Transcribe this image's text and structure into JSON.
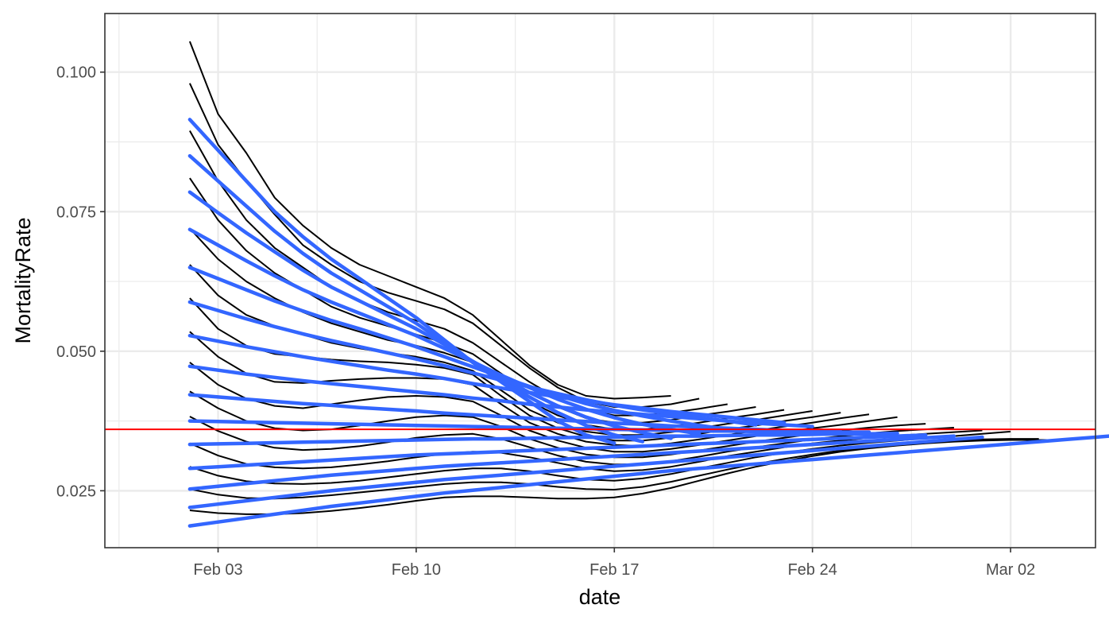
{
  "chart_data": {
    "type": "line",
    "title": "",
    "xlabel": "date",
    "ylabel": "MortalityRate",
    "x_ticks": [
      "2020-02-03",
      "2020-02-10",
      "2020-02-17",
      "2020-02-24",
      "2020-03-02"
    ],
    "x_tick_labels": [
      "Feb 03",
      "Feb 10",
      "Feb 17",
      "Feb 24",
      "Mar 02"
    ],
    "y_ticks": [
      0.025,
      0.05,
      0.075,
      0.1
    ],
    "y_tick_labels": [
      "0.025",
      "0.050",
      "0.075",
      "0.100"
    ],
    "xlim": [
      "2020-01-30",
      "2020-03-05"
    ],
    "ylim": [
      0.0148,
      0.1105
    ],
    "grid": true,
    "reference_line": {
      "y": 0.036,
      "color": "#ff0000"
    },
    "series_style": {
      "observed": {
        "color": "#000000"
      },
      "fitted": {
        "color": "#3366ff"
      }
    },
    "series": [
      {
        "type": "observed",
        "x_start": "2020-02-02",
        "y": [
          0.1055,
          0.0925,
          0.0855,
          0.0775,
          0.0725,
          0.0685,
          0.0655,
          0.0635,
          0.0615,
          0.0595,
          0.0565,
          0.052,
          0.0475,
          0.044,
          0.042,
          0.0415,
          0.0417,
          0.042
        ]
      },
      {
        "type": "observed",
        "x_start": "2020-02-02",
        "y": [
          0.098,
          0.087,
          0.0805,
          0.0745,
          0.069,
          0.0655,
          0.0625,
          0.0605,
          0.059,
          0.0575,
          0.055,
          0.051,
          0.047,
          0.0435,
          0.041,
          0.04,
          0.04,
          0.0405,
          0.0415
        ]
      },
      {
        "type": "observed",
        "x_start": "2020-02-02",
        "y": [
          0.0895,
          0.0805,
          0.0735,
          0.0685,
          0.065,
          0.0615,
          0.059,
          0.057,
          0.0555,
          0.054,
          0.0515,
          0.048,
          0.0445,
          0.0415,
          0.0395,
          0.0385,
          0.0385,
          0.039,
          0.0397,
          0.0405
        ]
      },
      {
        "type": "observed",
        "x_start": "2020-02-02",
        "y": [
          0.081,
          0.0735,
          0.068,
          0.064,
          0.061,
          0.058,
          0.056,
          0.0545,
          0.053,
          0.0515,
          0.0495,
          0.046,
          0.0425,
          0.04,
          0.038,
          0.0372,
          0.0372,
          0.0377,
          0.0385,
          0.0392,
          0.04
        ]
      },
      {
        "type": "observed",
        "x_start": "2020-02-02",
        "y": [
          0.072,
          0.0665,
          0.0625,
          0.0595,
          0.057,
          0.055,
          0.0535,
          0.052,
          0.051,
          0.0497,
          0.048,
          0.0445,
          0.041,
          0.0385,
          0.0368,
          0.036,
          0.036,
          0.0365,
          0.0372,
          0.038,
          0.0387,
          0.0395
        ]
      },
      {
        "type": "observed",
        "x_start": "2020-02-02",
        "y": [
          0.0655,
          0.06,
          0.0565,
          0.0545,
          0.053,
          0.0515,
          0.0505,
          0.0497,
          0.049,
          0.048,
          0.0465,
          0.043,
          0.0395,
          0.0372,
          0.0356,
          0.035,
          0.035,
          0.0355,
          0.0362,
          0.037,
          0.0377,
          0.0385,
          0.0393
        ]
      },
      {
        "type": "observed",
        "x_start": "2020-02-02",
        "y": [
          0.0595,
          0.054,
          0.051,
          0.0495,
          0.049,
          0.0485,
          0.0482,
          0.048,
          0.0476,
          0.047,
          0.0458,
          0.042,
          0.0385,
          0.0362,
          0.0347,
          0.034,
          0.034,
          0.0345,
          0.0352,
          0.036,
          0.0367,
          0.0375,
          0.0382,
          0.039
        ]
      },
      {
        "type": "observed",
        "x_start": "2020-02-02",
        "y": [
          0.0535,
          0.049,
          0.046,
          0.0445,
          0.0443,
          0.0447,
          0.045,
          0.0452,
          0.0452,
          0.045,
          0.044,
          0.0405,
          0.0372,
          0.0352,
          0.0338,
          0.0332,
          0.033,
          0.0335,
          0.0342,
          0.035,
          0.0358,
          0.0365,
          0.0372,
          0.038,
          0.0387
        ]
      },
      {
        "type": "observed",
        "x_start": "2020-02-02",
        "y": [
          0.048,
          0.044,
          0.0415,
          0.0402,
          0.0398,
          0.0405,
          0.0412,
          0.0418,
          0.042,
          0.0418,
          0.041,
          0.0385,
          0.0358,
          0.034,
          0.0327,
          0.032,
          0.032,
          0.0325,
          0.0332,
          0.034,
          0.0348,
          0.0355,
          0.0362,
          0.0368,
          0.0375,
          0.0382
        ]
      },
      {
        "type": "observed",
        "x_start": "2020-02-02",
        "y": [
          0.0428,
          0.0398,
          0.0375,
          0.0362,
          0.0358,
          0.036,
          0.0367,
          0.0375,
          0.0382,
          0.0385,
          0.0382,
          0.0365,
          0.0343,
          0.0327,
          0.0315,
          0.031,
          0.031,
          0.0315,
          0.0322,
          0.033,
          0.0338,
          0.0345,
          0.0352,
          0.0358,
          0.0363,
          0.0367,
          0.037
        ]
      },
      {
        "type": "observed",
        "x_start": "2020-02-02",
        "y": [
          0.0383,
          0.0357,
          0.0338,
          0.0327,
          0.0323,
          0.0325,
          0.033,
          0.0337,
          0.0345,
          0.035,
          0.0352,
          0.0343,
          0.0328,
          0.0313,
          0.0302,
          0.0297,
          0.0298,
          0.0303,
          0.0311,
          0.032,
          0.0328,
          0.0335,
          0.0342,
          0.0348,
          0.0353,
          0.0357,
          0.036,
          0.0363
        ]
      },
      {
        "type": "observed",
        "x_start": "2020-02-02",
        "y": [
          0.0335,
          0.0313,
          0.0298,
          0.0292,
          0.029,
          0.0292,
          0.0297,
          0.0303,
          0.031,
          0.0316,
          0.032,
          0.0318,
          0.031,
          0.03,
          0.029,
          0.0285,
          0.0287,
          0.0293,
          0.0302,
          0.0312,
          0.032,
          0.0328,
          0.0335,
          0.034,
          0.0345,
          0.0349,
          0.0352,
          0.0355,
          0.0358
        ]
      },
      {
        "type": "observed",
        "x_start": "2020-02-02",
        "y": [
          0.0293,
          0.0277,
          0.0267,
          0.0263,
          0.0262,
          0.0264,
          0.0268,
          0.0274,
          0.028,
          0.0286,
          0.029,
          0.029,
          0.0285,
          0.0277,
          0.027,
          0.0268,
          0.0272,
          0.028,
          0.029,
          0.03,
          0.031,
          0.0318,
          0.0325,
          0.0331,
          0.0336,
          0.034,
          0.0344,
          0.0348,
          0.0352,
          0.0356
        ]
      },
      {
        "type": "observed",
        "x_start": "2020-02-02",
        "y": [
          0.0253,
          0.0243,
          0.0237,
          0.0236,
          0.0238,
          0.0242,
          0.0247,
          0.0252,
          0.0257,
          0.0262,
          0.0265,
          0.0265,
          0.0262,
          0.0257,
          0.0253,
          0.0252,
          0.0257,
          0.0266,
          0.0277,
          0.0288,
          0.0298,
          0.0307,
          0.0315,
          0.0322,
          0.0328,
          0.0333,
          0.0337,
          0.034,
          0.0342,
          0.0343,
          0.0343
        ]
      },
      {
        "type": "observed",
        "x_start": "2020-02-02",
        "y": [
          0.0215,
          0.021,
          0.0208,
          0.0208,
          0.021,
          0.0214,
          0.0219,
          0.0225,
          0.0232,
          0.0238,
          0.024,
          0.024,
          0.0238,
          0.0236,
          0.0236,
          0.0238,
          0.0245,
          0.0255,
          0.0268,
          0.0281,
          0.0293,
          0.0303,
          0.0312,
          0.032,
          0.0326,
          0.0331,
          0.0335,
          0.0338,
          0.034,
          0.0341,
          0.0341,
          0.0341
        ]
      },
      {
        "type": "fitted",
        "x_start": "2020-02-02",
        "y": [
          0.0915,
          0.086,
          0.0805,
          0.075,
          0.0705,
          0.0665,
          0.063,
          0.0595,
          0.056,
          0.052,
          0.048,
          0.0445,
          0.041,
          0.0375,
          0.035,
          0.0335
        ]
      },
      {
        "type": "fitted",
        "x_start": "2020-02-02",
        "y": [
          0.085,
          0.0805,
          0.076,
          0.0715,
          0.0675,
          0.064,
          0.061,
          0.058,
          0.055,
          0.0515,
          0.048,
          0.0448,
          0.0418,
          0.039,
          0.0367,
          0.035,
          0.0338
        ]
      },
      {
        "type": "fitted",
        "x_start": "2020-02-02",
        "y": [
          0.0785,
          0.0748,
          0.0712,
          0.0678,
          0.0645,
          0.0615,
          0.059,
          0.0565,
          0.054,
          0.0512,
          0.0482,
          0.0453,
          0.0426,
          0.0402,
          0.0382,
          0.0366,
          0.0354,
          0.0344
        ]
      },
      {
        "type": "fitted",
        "x_start": "2020-02-02",
        "y": [
          0.0718,
          0.069,
          0.0662,
          0.0635,
          0.061,
          0.0588,
          0.0568,
          0.0548,
          0.0528,
          0.0505,
          0.0481,
          0.0457,
          0.0435,
          0.0414,
          0.0396,
          0.0381,
          0.0369,
          0.036,
          0.0352
        ]
      },
      {
        "type": "fitted",
        "x_start": "2020-02-02",
        "y": [
          0.065,
          0.063,
          0.061,
          0.059,
          0.0572,
          0.0555,
          0.054,
          0.0524,
          0.0508,
          0.049,
          0.0472,
          0.0454,
          0.0437,
          0.0421,
          0.0406,
          0.0394,
          0.0384,
          0.0375,
          0.0367,
          0.036
        ]
      },
      {
        "type": "fitted",
        "x_start": "2020-02-02",
        "y": [
          0.0588,
          0.0573,
          0.0558,
          0.0544,
          0.0531,
          0.0519,
          0.0508,
          0.0497,
          0.0486,
          0.0474,
          0.0461,
          0.0448,
          0.0436,
          0.0424,
          0.0413,
          0.0403,
          0.0395,
          0.0388,
          0.0381,
          0.0375,
          0.0368
        ]
      },
      {
        "type": "fitted",
        "x_start": "2020-02-02",
        "y": [
          0.0528,
          0.0518,
          0.0508,
          0.0499,
          0.049,
          0.0482,
          0.0474,
          0.0466,
          0.0459,
          0.0451,
          0.0442,
          0.0434,
          0.0426,
          0.0418,
          0.0411,
          0.0404,
          0.0398,
          0.0392,
          0.0387,
          0.0382,
          0.0377,
          0.0372
        ]
      },
      {
        "type": "fitted",
        "x_start": "2020-02-02",
        "y": [
          0.0473,
          0.0466,
          0.0459,
          0.0453,
          0.0447,
          0.0442,
          0.0437,
          0.0432,
          0.0427,
          0.0422,
          0.0416,
          0.0411,
          0.0405,
          0.04,
          0.0395,
          0.0391,
          0.0387,
          0.0383,
          0.0379,
          0.0375,
          0.0371,
          0.0368,
          0.0365
        ]
      },
      {
        "type": "fitted",
        "x_start": "2020-02-02",
        "y": [
          0.0422,
          0.0418,
          0.0414,
          0.041,
          0.0406,
          0.0403,
          0.0399,
          0.0396,
          0.0393,
          0.0389,
          0.0386,
          0.0383,
          0.038,
          0.0377,
          0.0374,
          0.0371,
          0.0369,
          0.0366,
          0.0364,
          0.0362,
          0.036,
          0.0358,
          0.0357,
          0.0356
        ]
      },
      {
        "type": "fitted",
        "x_start": "2020-02-02",
        "y": [
          0.0375,
          0.0374,
          0.0373,
          0.0372,
          0.0371,
          0.037,
          0.0369,
          0.0368,
          0.0367,
          0.0366,
          0.0365,
          0.0364,
          0.0363,
          0.0362,
          0.0361,
          0.036,
          0.0359,
          0.0358,
          0.0357,
          0.0357,
          0.0356,
          0.0356,
          0.0355,
          0.0355,
          0.0355
        ]
      },
      {
        "type": "fitted",
        "x_start": "2020-02-02",
        "y": [
          0.0333,
          0.0334,
          0.0335,
          0.0336,
          0.0337,
          0.0338,
          0.0339,
          0.034,
          0.0341,
          0.0342,
          0.0343,
          0.0343,
          0.0344,
          0.0345,
          0.0346,
          0.0346,
          0.0347,
          0.0348,
          0.0348,
          0.0349,
          0.035,
          0.035,
          0.0351,
          0.0352,
          0.0352,
          0.0353
        ]
      },
      {
        "type": "fitted",
        "x_start": "2020-02-02",
        "y": [
          0.029,
          0.0293,
          0.0296,
          0.0299,
          0.0302,
          0.0305,
          0.0308,
          0.0311,
          0.0314,
          0.0316,
          0.0318,
          0.032,
          0.0322,
          0.0324,
          0.0326,
          0.0328,
          0.033,
          0.0332,
          0.0334,
          0.0336,
          0.0338,
          0.034,
          0.0342,
          0.0344,
          0.0346,
          0.0348,
          0.035
        ]
      },
      {
        "type": "fitted",
        "x_start": "2020-02-02",
        "y": [
          0.0253,
          0.0258,
          0.0263,
          0.0268,
          0.0273,
          0.0278,
          0.0282,
          0.0286,
          0.029,
          0.0294,
          0.0297,
          0.03,
          0.0303,
          0.0306,
          0.0309,
          0.0312,
          0.0315,
          0.0318,
          0.0321,
          0.0324,
          0.0327,
          0.033,
          0.0333,
          0.0336,
          0.0339,
          0.0342,
          0.0345,
          0.0348
        ]
      },
      {
        "type": "fitted",
        "x_start": "2020-02-02",
        "y": [
          0.022,
          0.0226,
          0.0232,
          0.0238,
          0.0244,
          0.025,
          0.0255,
          0.026,
          0.0265,
          0.027,
          0.0274,
          0.0278,
          0.0282,
          0.0286,
          0.029,
          0.0294,
          0.0298,
          0.0302,
          0.0306,
          0.031,
          0.0314,
          0.0318,
          0.0322,
          0.0326,
          0.033,
          0.0334,
          0.0338,
          0.0342,
          0.0346
        ]
      },
      {
        "type": "fitted",
        "x_start": "2020-02-02",
        "y": [
          0.0187,
          0.0194,
          0.0201,
          0.0208,
          0.0215,
          0.0222,
          0.0228,
          0.0234,
          0.024,
          0.0246,
          0.0251,
          0.0256,
          0.0261,
          0.0266,
          0.0271,
          0.0276,
          0.0281,
          0.0286,
          0.029,
          0.0294,
          0.0298,
          0.0302,
          0.0306,
          0.031,
          0.0314,
          0.0318,
          0.0322,
          0.0326,
          0.033,
          0.0334,
          0.0338,
          0.0342,
          0.0346,
          0.035
        ]
      }
    ]
  }
}
